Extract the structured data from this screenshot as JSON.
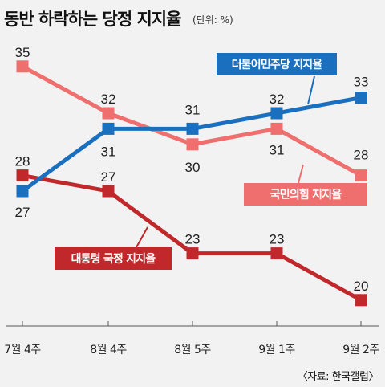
{
  "title": "동반 하락하는 당정 지지율",
  "unit": "(단위: %)",
  "source": "〈자료: 한국갤럽〉",
  "chart_data": {
    "type": "line",
    "title": "동반 하락하는 당정 지지율",
    "ylabel": "%",
    "categories": [
      "7월 4주",
      "8월 4주",
      "8월 5주",
      "9월 1주",
      "9월 2주"
    ],
    "ylim": [
      18,
      37
    ],
    "grid": false,
    "series": [
      {
        "name": "더불어민주당 지지율",
        "color": "#1a6fbf",
        "values": [
          27,
          31,
          31,
          32,
          33
        ]
      },
      {
        "name": "국민의힘 지지율",
        "color": "#ef6f6f",
        "values": [
          35,
          32,
          30,
          31,
          28
        ]
      },
      {
        "name": "대통령 국정 지지율",
        "color": "#c0282b",
        "values": [
          28,
          27,
          23,
          23,
          20
        ]
      }
    ]
  }
}
